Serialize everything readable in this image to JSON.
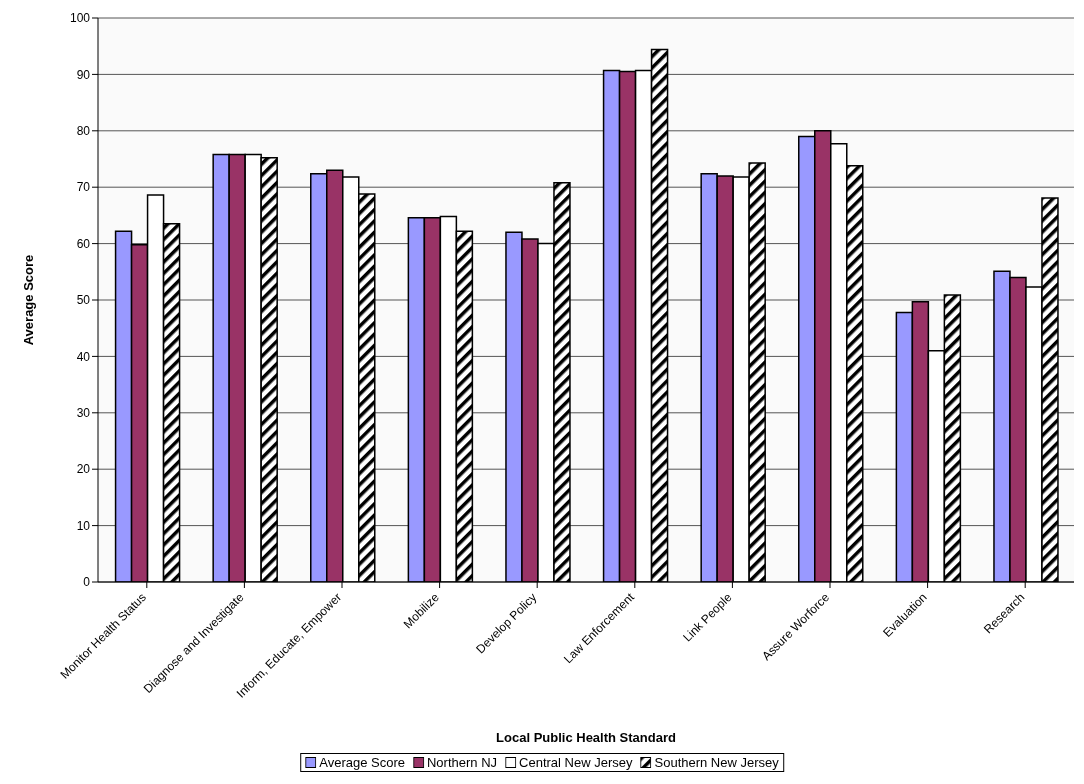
{
  "chart_data": {
    "type": "bar",
    "xlabel": "Local Public Health Standard",
    "ylabel": "Average Score",
    "categories": [
      "Monitor Health Status",
      "Diagnose and Investigate",
      "Inform, Educate, Empower",
      "Mobilize",
      "Develop Policy",
      "Law Enforcement",
      "Link People",
      "Assure Worforce",
      "Evaluation",
      "Research"
    ],
    "series": [
      {
        "name": "Average Score",
        "color": "#9999ff",
        "values": [
          62.2,
          75.8,
          72.4,
          64.6,
          62,
          90.7,
          72.4,
          79,
          47.8,
          55.1
        ]
      },
      {
        "name": "Northern NJ",
        "color": "#993366",
        "values": [
          59.8,
          75.8,
          73,
          64.6,
          60.8,
          90.5,
          72,
          80,
          49.7,
          54
        ]
      },
      {
        "name": "Central New Jersey",
        "color": "#ffffff",
        "values": [
          68.6,
          75.8,
          71.8,
          64.8,
          60,
          90.7,
          71.8,
          77.7,
          41,
          52.3
        ]
      },
      {
        "name": "Southern New Jersey",
        "color": "#000000",
        "values": [
          63.5,
          75.2,
          68.8,
          62.2,
          70.8,
          94.4,
          74.3,
          73.8,
          50.9,
          68.1
        ]
      }
    ],
    "ylim": [
      0,
      100
    ],
    "yticks": [
      0,
      10,
      20,
      30,
      40,
      50,
      60,
      70,
      80,
      90,
      100
    ],
    "grid": "y",
    "legend": "bottom"
  }
}
